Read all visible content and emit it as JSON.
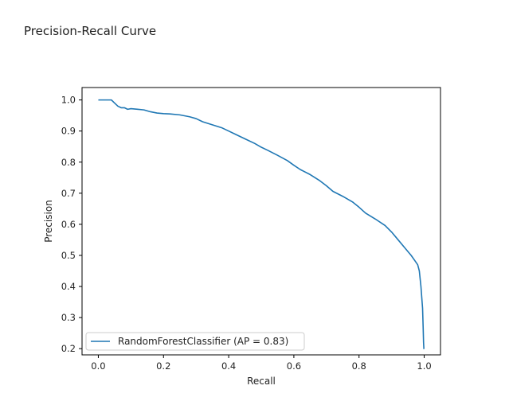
{
  "page": {
    "title": "Precision-Recall Curve"
  },
  "chart_data": {
    "type": "line",
    "xlabel": "Recall",
    "ylabel": "Precision",
    "xlim": [
      -0.05,
      1.05
    ],
    "ylim": [
      0.18,
      1.04
    ],
    "xticks": [
      0.0,
      0.2,
      0.4,
      0.6,
      0.8,
      1.0
    ],
    "xtick_labels": [
      "0.0",
      "0.2",
      "0.4",
      "0.6",
      "0.8",
      "1.0"
    ],
    "yticks": [
      0.2,
      0.3,
      0.4,
      0.5,
      0.6,
      0.7,
      0.8,
      0.9,
      1.0
    ],
    "ytick_labels": [
      "0.2",
      "0.3",
      "0.4",
      "0.5",
      "0.6",
      "0.7",
      "0.8",
      "0.9",
      "1.0"
    ],
    "grid": false,
    "legend_position": "lower-left",
    "series": [
      {
        "name": "RandomForestClassifier (AP = 0.83)",
        "color": "#1f77b4",
        "x": [
          0.0,
          0.02,
          0.04,
          0.05,
          0.06,
          0.07,
          0.08,
          0.09,
          0.1,
          0.12,
          0.14,
          0.16,
          0.18,
          0.2,
          0.22,
          0.25,
          0.28,
          0.3,
          0.32,
          0.35,
          0.38,
          0.4,
          0.42,
          0.45,
          0.48,
          0.5,
          0.52,
          0.55,
          0.58,
          0.6,
          0.62,
          0.65,
          0.68,
          0.7,
          0.72,
          0.75,
          0.78,
          0.8,
          0.82,
          0.85,
          0.88,
          0.9,
          0.92,
          0.94,
          0.96,
          0.97,
          0.98,
          0.985,
          0.99,
          0.995,
          0.997,
          0.998,
          0.999,
          1.0
        ],
        "y": [
          1.0,
          1.0,
          1.0,
          0.99,
          0.98,
          0.975,
          0.975,
          0.97,
          0.972,
          0.97,
          0.968,
          0.962,
          0.958,
          0.956,
          0.955,
          0.952,
          0.946,
          0.94,
          0.93,
          0.92,
          0.91,
          0.9,
          0.89,
          0.875,
          0.86,
          0.848,
          0.838,
          0.822,
          0.805,
          0.79,
          0.776,
          0.76,
          0.74,
          0.724,
          0.706,
          0.69,
          0.672,
          0.655,
          0.636,
          0.617,
          0.596,
          0.575,
          0.55,
          0.525,
          0.5,
          0.485,
          0.47,
          0.45,
          0.4,
          0.33,
          0.26,
          0.22,
          0.2,
          0.2
        ]
      }
    ]
  }
}
